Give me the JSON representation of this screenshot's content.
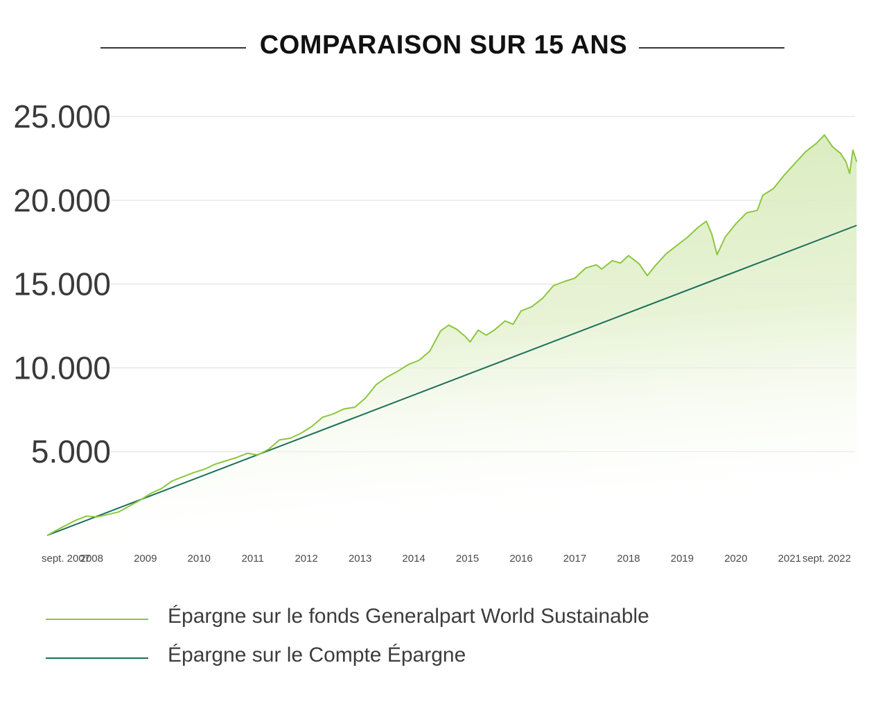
{
  "title": "COMPARAISON SUR 15 ANS",
  "colors": {
    "fund": "#8cc63f",
    "savings": "#1a6e5a",
    "grid": "#dddddd",
    "fill": "#d8ebbd"
  },
  "legend": [
    {
      "label": "Épargne sur le fonds Generalpart World Sustainable",
      "color": "#8cc63f"
    },
    {
      "label": "Épargne sur le Compte Épargne",
      "color": "#1a6e5a"
    }
  ],
  "chart_data": {
    "type": "line",
    "title": "COMPARAISON SUR 15 ANS",
    "xlabel": "",
    "ylabel": "",
    "ylim": [
      0,
      25000
    ],
    "yticks": [
      5000,
      10000,
      15000,
      20000,
      25000
    ],
    "ytick_labels": [
      "5.000",
      "10.000",
      "15.000",
      "20.000",
      "25.000"
    ],
    "xlim": [
      2007.67,
      2022.67
    ],
    "xticks": [
      2007.67,
      2008.5,
      2009.5,
      2010.5,
      2011.5,
      2012.5,
      2013.5,
      2014.5,
      2015.5,
      2016.5,
      2017.5,
      2018.5,
      2019.5,
      2020.5,
      2021.5,
      2022.5
    ],
    "xtick_labels": [
      "sept. 2007",
      "2008",
      "2009",
      "2010",
      "2011",
      "2012",
      "2013",
      "2014",
      "2015",
      "2016",
      "2017",
      "2018",
      "2019",
      "2020",
      "2021",
      "sept. 2022"
    ],
    "grid": true,
    "legend_position": "bottom",
    "series": [
      {
        "name": "Épargne sur le fonds Generalpart World Sustainable",
        "color": "#8cc63f",
        "points": [
          [
            2007.67,
            0
          ],
          [
            2007.9,
            400
          ],
          [
            2008.2,
            900
          ],
          [
            2008.4,
            1150
          ],
          [
            2008.6,
            1100
          ],
          [
            2008.8,
            1250
          ],
          [
            2009.0,
            1400
          ],
          [
            2009.2,
            1750
          ],
          [
            2009.4,
            2100
          ],
          [
            2009.6,
            2500
          ],
          [
            2009.8,
            2800
          ],
          [
            2010.0,
            3250
          ],
          [
            2010.2,
            3500
          ],
          [
            2010.4,
            3750
          ],
          [
            2010.6,
            3950
          ],
          [
            2010.8,
            4250
          ],
          [
            2011.0,
            4450
          ],
          [
            2011.2,
            4650
          ],
          [
            2011.4,
            4900
          ],
          [
            2011.6,
            4800
          ],
          [
            2011.8,
            5150
          ],
          [
            2012.0,
            5700
          ],
          [
            2012.2,
            5800
          ],
          [
            2012.4,
            6100
          ],
          [
            2012.6,
            6500
          ],
          [
            2012.8,
            7050
          ],
          [
            2013.0,
            7250
          ],
          [
            2013.2,
            7550
          ],
          [
            2013.4,
            7650
          ],
          [
            2013.6,
            8200
          ],
          [
            2013.8,
            9000
          ],
          [
            2014.0,
            9450
          ],
          [
            2014.2,
            9800
          ],
          [
            2014.4,
            10200
          ],
          [
            2014.6,
            10450
          ],
          [
            2014.8,
            11000
          ],
          [
            2015.0,
            12200
          ],
          [
            2015.15,
            12550
          ],
          [
            2015.3,
            12300
          ],
          [
            2015.45,
            11900
          ],
          [
            2015.55,
            11550
          ],
          [
            2015.7,
            12250
          ],
          [
            2015.85,
            11950
          ],
          [
            2016.0,
            12250
          ],
          [
            2016.2,
            12800
          ],
          [
            2016.35,
            12600
          ],
          [
            2016.5,
            13400
          ],
          [
            2016.7,
            13650
          ],
          [
            2016.9,
            14150
          ],
          [
            2017.1,
            14900
          ],
          [
            2017.3,
            15150
          ],
          [
            2017.5,
            15350
          ],
          [
            2017.7,
            15950
          ],
          [
            2017.9,
            16150
          ],
          [
            2018.0,
            15900
          ],
          [
            2018.2,
            16400
          ],
          [
            2018.35,
            16250
          ],
          [
            2018.5,
            16700
          ],
          [
            2018.7,
            16200
          ],
          [
            2018.85,
            15500
          ],
          [
            2019.0,
            16100
          ],
          [
            2019.2,
            16800
          ],
          [
            2019.4,
            17300
          ],
          [
            2019.6,
            17800
          ],
          [
            2019.8,
            18400
          ],
          [
            2019.95,
            18750
          ],
          [
            2020.05,
            18000
          ],
          [
            2020.15,
            16750
          ],
          [
            2020.3,
            17800
          ],
          [
            2020.5,
            18600
          ],
          [
            2020.7,
            19250
          ],
          [
            2020.9,
            19400
          ],
          [
            2021.0,
            20300
          ],
          [
            2021.2,
            20700
          ],
          [
            2021.4,
            21500
          ],
          [
            2021.6,
            22200
          ],
          [
            2021.8,
            22900
          ],
          [
            2022.0,
            23400
          ],
          [
            2022.15,
            23900
          ],
          [
            2022.3,
            23200
          ],
          [
            2022.45,
            22800
          ],
          [
            2022.55,
            22300
          ],
          [
            2022.62,
            21600
          ],
          [
            2022.68,
            23000
          ],
          [
            2022.75,
            22300
          ]
        ]
      },
      {
        "name": "Épargne sur le Compte Épargne",
        "color": "#1a6e5a",
        "points": [
          [
            2007.67,
            0
          ],
          [
            2022.75,
            18500
          ]
        ]
      }
    ]
  }
}
